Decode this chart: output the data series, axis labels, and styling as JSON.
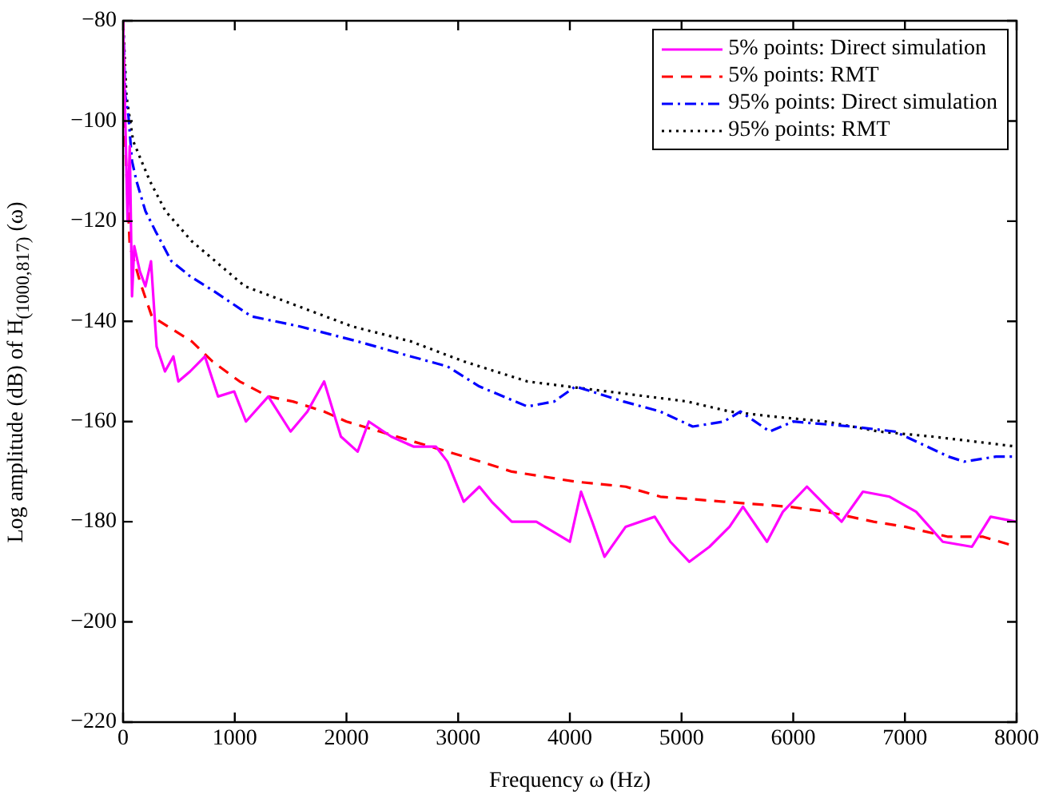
{
  "chart_data": {
    "type": "line",
    "xlabel": "Frequency ω (Hz)",
    "ylabel": "Log amplitude (dB) of H$_{(1000,817)}$ (ω)",
    "xlim": [
      0,
      8000
    ],
    "xticks": [
      0,
      1000,
      2000,
      3000,
      4000,
      5000,
      6000,
      7000,
      8000
    ],
    "ylim": [
      -220,
      -80
    ],
    "yticks": [
      -220,
      -200,
      -180,
      -160,
      -140,
      -120,
      -100,
      -80
    ],
    "grid": false,
    "legend": "top right",
    "marker": "none",
    "series": [
      {
        "name": "5% points: Direct simulation",
        "color": "#ff00ff",
        "line_style": "solid",
        "x": [
          0,
          20,
          40,
          60,
          80,
          100,
          150,
          200,
          250,
          300,
          375,
          450,
          495,
          600,
          733,
          850,
          995,
          1100,
          1300,
          1500,
          1650,
          1800,
          1950,
          2100,
          2200,
          2400,
          2600,
          2800,
          2904,
          3050,
          3190,
          3300,
          3480,
          3700,
          4000,
          4100,
          4200,
          4310,
          4500,
          4760,
          4900,
          5070,
          5250,
          5430,
          5550,
          5765,
          5908,
          6122,
          6433,
          6624,
          6862,
          7100,
          7339,
          7600,
          7767,
          8000
        ],
        "values": [
          -80,
          -100,
          -120,
          -105,
          -135,
          -125,
          -130,
          -133,
          -128,
          -145,
          -150,
          -147,
          -152,
          -150,
          -147,
          -155,
          -154,
          -160,
          -155,
          -162,
          -158,
          -152,
          -163,
          -166,
          -160,
          -163,
          -165,
          -165,
          -168,
          -176,
          -173,
          -176,
          -180,
          -180,
          -184,
          -174,
          -180,
          -187,
          -181,
          -179,
          -184,
          -188,
          -185,
          -181,
          -177,
          -184,
          -178,
          -173,
          -180,
          -174,
          -175,
          -178,
          -184,
          -185,
          -179,
          -180
        ]
      },
      {
        "name": "5% points: RMT",
        "color": "#ff0000",
        "line_style": "dashed",
        "x": [
          0,
          20,
          40,
          60,
          100,
          150,
          257,
          400,
          615,
          800,
          1044,
          1300,
          1520,
          1800,
          2000,
          2300,
          2600,
          2904,
          3200,
          3480,
          4050,
          4500,
          4810,
          5380,
          5956,
          6300,
          6719,
          7000,
          7387,
          7700,
          8000
        ],
        "values": [
          -80,
          -105,
          -115,
          -125,
          -128,
          -132,
          -139,
          -141,
          -144,
          -148,
          -152,
          -155,
          -156,
          -158,
          -160,
          -162,
          -164,
          -166,
          -168,
          -170,
          -172,
          -173,
          -175,
          -176,
          -177,
          -178,
          -180,
          -181,
          -183,
          -183,
          -185
        ]
      },
      {
        "name": "95% points: Direct simulation",
        "color": "#0000ff",
        "line_style": "dashdot",
        "x": [
          0,
          20,
          48,
          80,
          120,
          200,
          290,
          433,
          600,
          815,
          1148,
          1577,
          2100,
          2576,
          2904,
          3190,
          3620,
          3860,
          4050,
          4480,
          4810,
          5100,
          5380,
          5527,
          5790,
          6000,
          6527,
          6910,
          7390,
          7530,
          7815,
          8000
        ],
        "values": [
          -80,
          -95,
          -99,
          -108,
          -112,
          -118,
          -122,
          -128,
          -131,
          -134,
          -139,
          -141,
          -144,
          -147,
          -149,
          -153,
          -157,
          -156,
          -153,
          -156,
          -158,
          -161,
          -160,
          -158,
          -162,
          -160,
          -161,
          -162,
          -167,
          -168,
          -167,
          -167
        ]
      },
      {
        "name": "95% points: RMT",
        "color": "#000000",
        "line_style": "dotted",
        "x": [
          0,
          30,
          90,
          240,
          380,
          615,
          1090,
          1570,
          2050,
          2576,
          3050,
          3620,
          4336,
          5050,
          5430,
          5813,
          6290,
          6767,
          7243,
          7625,
          8000
        ],
        "values": [
          -80,
          -95,
          -104,
          -112,
          -118,
          -124,
          -133,
          -137,
          -141,
          -144,
          -148,
          -152,
          -154,
          -156,
          -158,
          -159,
          -160,
          -162,
          -163,
          -164,
          -165
        ]
      }
    ]
  }
}
